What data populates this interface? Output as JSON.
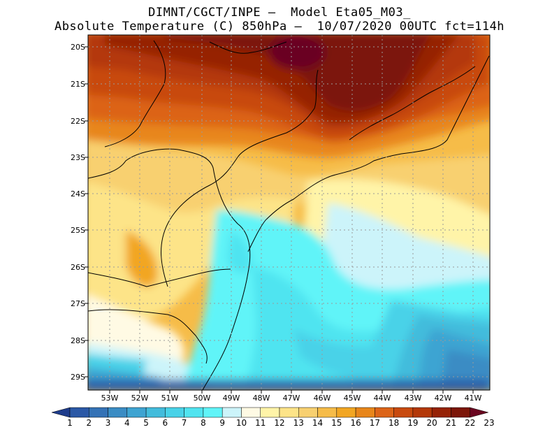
{
  "title_line1": "DIMNT/CGCT/INPE –  Model Eta05_M03_",
  "title_line2": "Absolute Temperature (C) 850hPa –  10/07/2020 00UTC fct=114h",
  "lat_labels": [
    "20S",
    "21S",
    "22S",
    "23S",
    "24S",
    "25S",
    "26S",
    "27S",
    "28S",
    "29S"
  ],
  "lon_labels": [
    "53W",
    "52W",
    "51W",
    "50W",
    "49W",
    "48W",
    "47W",
    "46W",
    "45W",
    "44W",
    "43W",
    "42W",
    "41W"
  ],
  "colorbar": {
    "labels": [
      "1",
      "2",
      "3",
      "4",
      "5",
      "6",
      "7",
      "8",
      "9",
      "10",
      "11",
      "12",
      "13",
      "14",
      "15",
      "16",
      "17",
      "18",
      "19",
      "20",
      "21",
      "22",
      "23"
    ],
    "colors": [
      "#1e3c8c",
      "#2a58a6",
      "#3472b6",
      "#3a8cc4",
      "#3ea4d2",
      "#42bcdc",
      "#48d2e8",
      "#50e4f0",
      "#60f4f8",
      "#ccf4fa",
      "#fffae4",
      "#fff4a8",
      "#fde488",
      "#f8d070",
      "#f6bc48",
      "#f2a622",
      "#e8861a",
      "#dc6418",
      "#c84a0e",
      "#b43808",
      "#962206",
      "#7c1608",
      "#6a0620"
    ]
  }
}
